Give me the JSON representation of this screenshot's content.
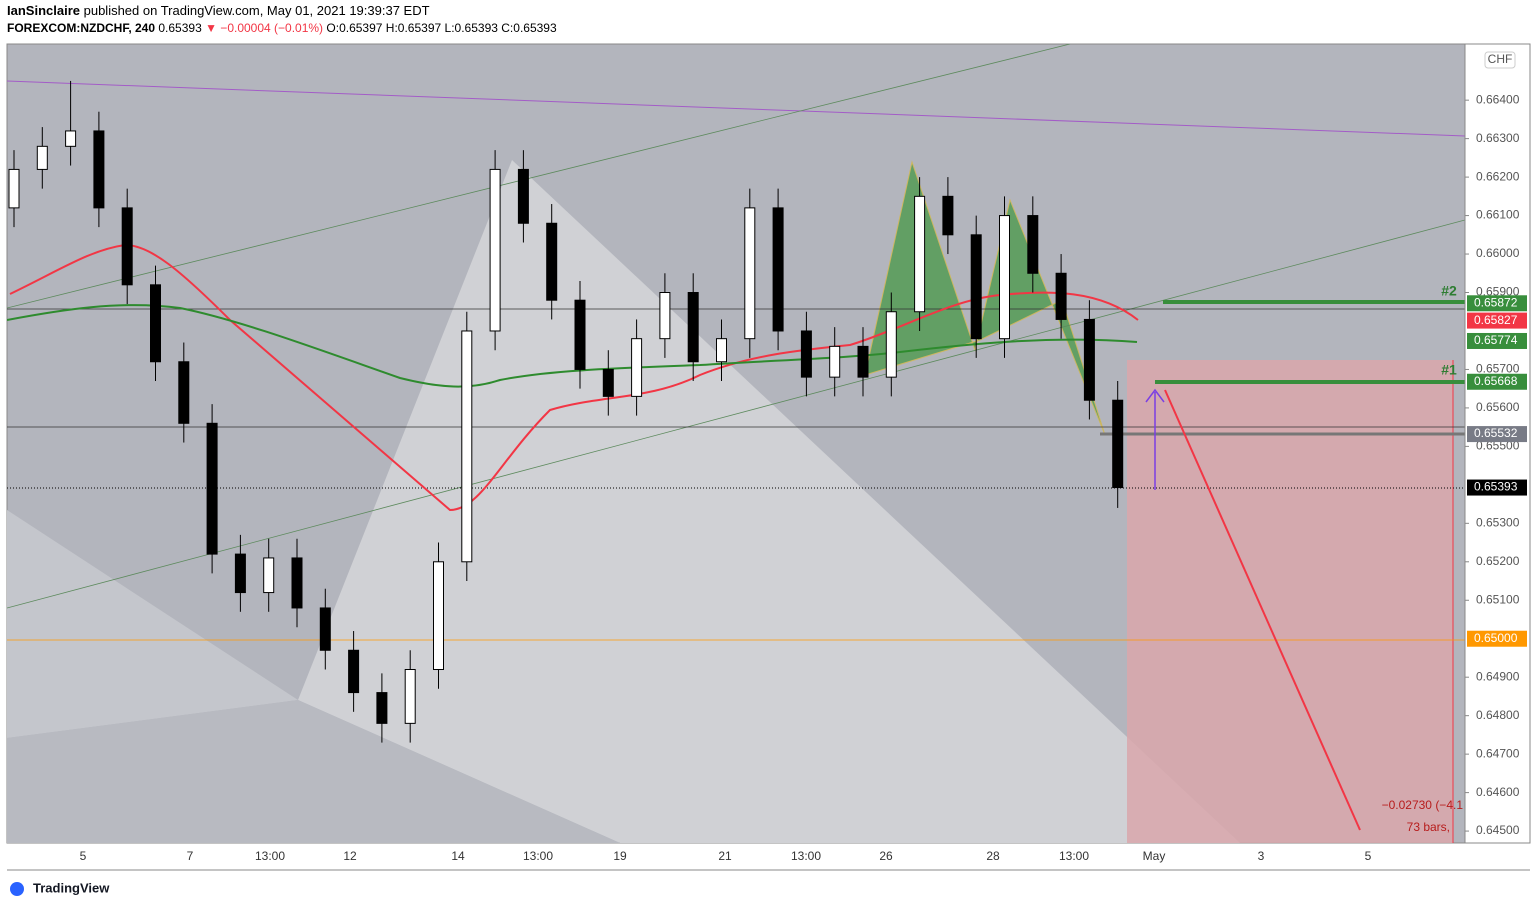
{
  "header": {
    "publisher": "IanSinclaire",
    "published": "published on TradingView.com, May 01, 2021 19:39:37 EDT",
    "symbol": "FOREXCOM:NZDCHF, 240",
    "last": "0.65393",
    "change": "▼ −0.00004 (−0.01%)",
    "o": "O:0.65397",
    "h": "H:0.65397",
    "l": "L:0.65393",
    "c": "C:0.65393"
  },
  "chart_data": {
    "type": "candlestick",
    "currency": "CHF",
    "open": [
      0.6612,
      0.6622,
      0.6628,
      0.6632,
      0.6612,
      0.6592,
      0.6572,
      0.6556,
      0.6522,
      0.6512,
      0.6521,
      0.6508,
      0.6497,
      0.6486,
      0.6478,
      0.6492,
      0.652,
      0.658,
      0.6622,
      0.6608,
      0.6588,
      0.657,
      0.6563,
      0.6578,
      0.659,
      0.6572,
      0.6578,
      0.6612,
      0.658,
      0.6568,
      0.6576,
      0.6568,
      0.6585,
      0.6615,
      0.6605,
      0.6578,
      0.661,
      0.6595,
      0.6583,
      0.6562
    ],
    "high": [
      0.6627,
      0.6633,
      0.6645,
      0.6637,
      0.6617,
      0.6597,
      0.6577,
      0.6561,
      0.6527,
      0.6526,
      0.6526,
      0.6513,
      0.6502,
      0.6491,
      0.6497,
      0.6525,
      0.6585,
      0.6627,
      0.6627,
      0.6613,
      0.6593,
      0.6575,
      0.6583,
      0.6595,
      0.6595,
      0.6583,
      0.6617,
      0.6617,
      0.6585,
      0.6581,
      0.6581,
      0.659,
      0.662,
      0.662,
      0.661,
      0.6615,
      0.6615,
      0.66,
      0.6588,
      0.6567
    ],
    "low": [
      0.6607,
      0.6617,
      0.6623,
      0.6607,
      0.6587,
      0.6567,
      0.6551,
      0.6517,
      0.6507,
      0.6507,
      0.6503,
      0.6492,
      0.6481,
      0.6473,
      0.6473,
      0.6487,
      0.6515,
      0.6575,
      0.6603,
      0.6583,
      0.6565,
      0.6558,
      0.6558,
      0.6573,
      0.6567,
      0.6567,
      0.6573,
      0.6575,
      0.6563,
      0.6563,
      0.6563,
      0.6563,
      0.658,
      0.66,
      0.6573,
      0.6573,
      0.659,
      0.6578,
      0.6557,
      0.6534
    ],
    "close": [
      0.6622,
      0.6628,
      0.6632,
      0.6612,
      0.6592,
      0.6572,
      0.6556,
      0.6522,
      0.6512,
      0.6521,
      0.6508,
      0.6497,
      0.6486,
      0.6478,
      0.6492,
      0.652,
      0.658,
      0.6622,
      0.6608,
      0.6588,
      0.657,
      0.6563,
      0.6578,
      0.659,
      0.6572,
      0.6578,
      0.6612,
      0.658,
      0.6568,
      0.6576,
      0.6568,
      0.6585,
      0.6615,
      0.6605,
      0.6578,
      0.661,
      0.6595,
      0.6583,
      0.6562,
      0.65393
    ],
    "ylim": [
      0.64469,
      0.66546
    ],
    "yticks": [
      {
        "value": 0.645,
        "label": "0.64500"
      },
      {
        "value": 0.646,
        "label": "0.64600"
      },
      {
        "value": 0.647,
        "label": "0.64700"
      },
      {
        "value": 0.648,
        "label": "0.64800"
      },
      {
        "value": 0.649,
        "label": "0.64900"
      },
      {
        "value": 0.651,
        "label": "0.65100"
      },
      {
        "value": 0.652,
        "label": "0.65200"
      },
      {
        "value": 0.653,
        "label": "0.65300"
      },
      {
        "value": 0.655,
        "label": "0.65500"
      },
      {
        "value": 0.656,
        "label": "0.65600"
      },
      {
        "value": 0.657,
        "label": "0.65700"
      },
      {
        "value": 0.659,
        "label": "0.65900"
      },
      {
        "value": 0.66,
        "label": "0.66000"
      },
      {
        "value": 0.661,
        "label": "0.66100"
      },
      {
        "value": 0.662,
        "label": "0.66200"
      },
      {
        "value": 0.663,
        "label": "0.66300"
      },
      {
        "value": 0.664,
        "label": "0.66400"
      }
    ],
    "xticks": [
      "5",
      "7",
      "13:00",
      "12",
      "14",
      "13:00",
      "19",
      "21",
      "13:00",
      "26",
      "28",
      "13:00",
      "May",
      "3",
      "5"
    ],
    "price_labels": [
      {
        "value": 0.65872,
        "label": "0.65872",
        "color": "#388e3c"
      },
      {
        "value": 0.65827,
        "label": "0.65827",
        "color": "#f23645"
      },
      {
        "value": 0.65774,
        "label": "0.65774",
        "color": "#388e3c"
      },
      {
        "value": 0.65668,
        "label": "0.65668",
        "color": "#388e3c"
      },
      {
        "value": 0.65532,
        "label": "0.65532",
        "color": "#787b86"
      },
      {
        "value": 0.65393,
        "label": "0.65393",
        "color": "#000000"
      },
      {
        "value": 0.65,
        "label": "0.65000",
        "color": "#ff9800"
      }
    ],
    "annotations": [
      "#2",
      "#1",
      "−0.02730 (−4.1",
      "73 bars,"
    ]
  },
  "footer": "TradingView"
}
